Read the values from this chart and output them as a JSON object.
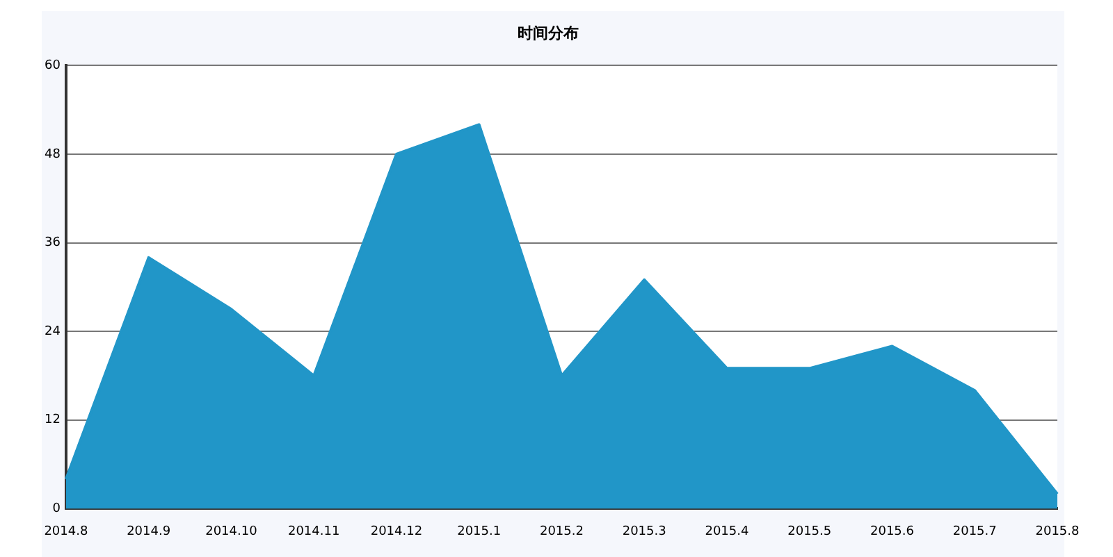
{
  "chart_data": {
    "type": "area",
    "title": "时间分布",
    "categories": [
      "2014.8",
      "2014.9",
      "2014.10",
      "2014.11",
      "2014.12",
      "2015.1",
      "2015.2",
      "2015.3",
      "2015.4",
      "2015.5",
      "2015.6",
      "2015.7",
      "2015.8"
    ],
    "series": [
      {
        "color": "#2196c8",
        "values": [
          4,
          34,
          27,
          18,
          48,
          52,
          18,
          31,
          19,
          19,
          22,
          16,
          2
        ]
      }
    ],
    "ylim": [
      0,
      60
    ],
    "yticks": [
      0,
      12,
      24,
      36,
      48,
      60
    ],
    "grid": "y",
    "legend": false,
    "marker": "none"
  }
}
